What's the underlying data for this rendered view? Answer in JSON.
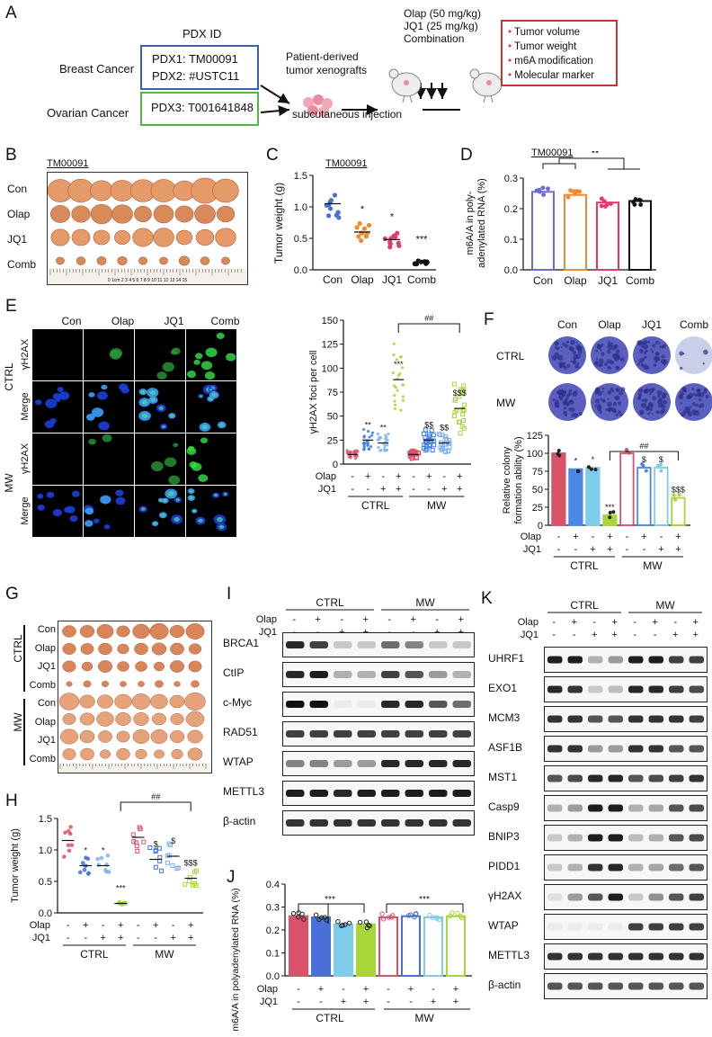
{
  "panelA": {
    "letter": "A",
    "pdx_header": "PDX ID",
    "breast": "Breast Cancer",
    "ovarian": "Ovarian Cancer",
    "pdx1": "PDX1: TM00091",
    "pdx2": "PDX2: #USTC11",
    "pdx3": "PDX3: T001641848",
    "xenograft1": "Patient-derived",
    "xenograft2": "tumor xenografts",
    "injection": "subcutaneous injection",
    "drug1": "Olap (50 mg/kg)",
    "drug2": "JQ1 (25 mg/kg)",
    "drug3": "Combination",
    "readouts": [
      "Tumor volume",
      "Tumor weight",
      "m6A modification",
      "Molecular marker"
    ],
    "colors": {
      "breast_box": "#3a5fb0",
      "ovarian_box": "#55b54a",
      "readout_box": "#c0392b",
      "bullet": "#e03b3b"
    }
  },
  "panelB": {
    "letter": "B",
    "model": "TM00091",
    "rows": [
      "Con",
      "Olap",
      "JQ1",
      "Comb"
    ],
    "ruler": "0  1cm 2  3  4  5  6  7  8  9  10  11  12  13  14  15"
  },
  "panelC": {
    "letter": "C",
    "model": "TM00091",
    "ylabel": "Tumor weight (g)",
    "yticks": [
      "0.0",
      "0.5",
      "1.0",
      "1.5"
    ],
    "xlabels": [
      "Con",
      "Olap",
      "JQ1",
      "Comb"
    ],
    "sig": [
      "",
      "*",
      "*",
      "***"
    ]
  },
  "panelD": {
    "letter": "D",
    "model": "TM00091",
    "ylabel1": "m6A/A in poly-",
    "ylabel2": "adenylated RNA (%)",
    "yticks": [
      "0.0",
      "0.1",
      "0.2",
      "0.3"
    ],
    "xlabels": [
      "Con",
      "Olap",
      "JQ1",
      "Comb"
    ],
    "sig": "**"
  },
  "panelE": {
    "letter": "E",
    "cols": [
      "Con",
      "Olap",
      "JQ1",
      "Comb"
    ],
    "group1": "CTRL",
    "group2": "MW",
    "rowlabels": [
      "γH2AX",
      "Merge",
      "γH2AX",
      "Merge"
    ],
    "ylabel": "γH2AX foci per cell",
    "yticks": [
      "0",
      "25",
      "50",
      "75",
      "100",
      "125",
      "150"
    ],
    "olap": [
      "-",
      "+",
      "-",
      "+",
      "-",
      "+",
      "-",
      "+"
    ],
    "jq1": [
      "-",
      "-",
      "+",
      "+",
      "-",
      "-",
      "+",
      "+"
    ],
    "sig": [
      "",
      "**",
      "**",
      "***",
      "",
      "$$",
      "$$",
      "$$$"
    ],
    "bracket": "##",
    "row_olap": "Olap",
    "row_jq1": "JQ1"
  },
  "panelF": {
    "letter": "F",
    "cols": [
      "Con",
      "Olap",
      "JQ1",
      "Comb"
    ],
    "rows": [
      "CTRL",
      "MW"
    ],
    "ylabel1": "Relative colony",
    "ylabel2": "formation ability (%)",
    "yticks": [
      "0",
      "25",
      "50",
      "75",
      "100",
      "125"
    ],
    "olap": [
      "-",
      "+",
      "-",
      "+",
      "-",
      "+",
      "-",
      "+"
    ],
    "jq1": [
      "-",
      "-",
      "+",
      "+",
      "-",
      "-",
      "+",
      "+"
    ],
    "sig": [
      "",
      "*",
      "*",
      "***",
      "",
      "$",
      "$",
      "$$$"
    ],
    "bracket": "##",
    "group1": "CTRL",
    "group2": "MW",
    "row_olap": "Olap",
    "row_jq1": "JQ1"
  },
  "panelG": {
    "letter": "G",
    "group1": "CTRL",
    "group2": "MW",
    "rows": [
      "Con",
      "Olap",
      "JQ1",
      "Comb",
      "Con",
      "Olap",
      "JQ1",
      "Comb"
    ]
  },
  "panelH": {
    "letter": "H",
    "ylabel": "Tumor weight (g)",
    "yticks": [
      "0.0",
      "0.5",
      "1.0",
      "1.5"
    ],
    "olap": [
      "-",
      "+",
      "-",
      "+",
      "-",
      "+",
      "-",
      "+"
    ],
    "jq1": [
      "-",
      "-",
      "+",
      "+",
      "-",
      "-",
      "+",
      "+"
    ],
    "sig": [
      "",
      "*",
      "*",
      "***",
      "",
      "$",
      "$",
      "$$$"
    ],
    "bracket": "##",
    "group1": "CTRL",
    "group2": "MW",
    "row_olap": "Olap",
    "row_jq1": "JQ1"
  },
  "panelI": {
    "letter": "I",
    "group1": "CTRL",
    "group2": "MW",
    "row_olap": "Olap",
    "row_jq1": "JQ1",
    "olap": [
      "-",
      "+",
      "-",
      "+",
      "-",
      "+",
      "-",
      "+"
    ],
    "jq1": [
      "-",
      "-",
      "+",
      "+",
      "-",
      "-",
      "+",
      "+"
    ],
    "bands": [
      "BRCA1",
      "CtIP",
      "c-Myc",
      "RAD51",
      "WTAP",
      "METTL3",
      "β-actin"
    ]
  },
  "panelJ": {
    "letter": "J",
    "ylabel": "m6A/A in polyadenylated RNA (%)",
    "yticks": [
      "0.0",
      "0.1",
      "0.2",
      "0.3",
      "0.4"
    ],
    "sig1": "***",
    "sig2": "***",
    "olap": [
      "-",
      "+",
      "-",
      "+",
      "-",
      "+",
      "-",
      "+"
    ],
    "jq1": [
      "-",
      "-",
      "+",
      "+",
      "-",
      "-",
      "+",
      "+"
    ],
    "group1": "CTRL",
    "group2": "MW",
    "row_olap": "Olap",
    "row_jq1": "JQ1"
  },
  "panelK": {
    "letter": "K",
    "group1": "CTRL",
    "group2": "MW",
    "row_olap": "Olap",
    "row_jq1": "JQ1",
    "olap": [
      "-",
      "+",
      "-",
      "+",
      "-",
      "+",
      "-",
      "+"
    ],
    "jq1": [
      "-",
      "-",
      "+",
      "+",
      "-",
      "-",
      "+",
      "+"
    ],
    "bands": [
      "UHRF1",
      "EXO1",
      "MCM3",
      "ASF1B",
      "MST1",
      "Casp9",
      "BNIP3",
      "PIDD1",
      "γH2AX",
      "WTAP",
      "METTL3",
      "β-actin"
    ]
  },
  "chart_data": [
    {
      "type": "scatter",
      "panel": "C",
      "title": "TM00091",
      "ylabel": "Tumor weight (g)",
      "ylim": [
        0,
        1.5
      ],
      "categories": [
        "Con",
        "Olap",
        "JQ1",
        "Comb"
      ],
      "means": [
        1.05,
        0.6,
        0.48,
        0.12
      ],
      "colors": [
        "#4a6fd8",
        "#f08a2a",
        "#e8386a",
        "#111111"
      ]
    },
    {
      "type": "bar",
      "panel": "D",
      "title": "TM00091",
      "ylabel": "m6A/A in poly-adenylated RNA (%)",
      "ylim": [
        0,
        0.3
      ],
      "categories": [
        "Con",
        "Olap",
        "JQ1",
        "Comb"
      ],
      "values": [
        0.255,
        0.245,
        0.22,
        0.225
      ],
      "colors": [
        "#6a6ad8",
        "#f08a2a",
        "#e8386a",
        "#111111"
      ]
    },
    {
      "type": "scatter",
      "panel": "E",
      "ylabel": "γH2AX foci per cell",
      "ylim": [
        0,
        150
      ],
      "categories": [
        "1",
        "2",
        "3",
        "4",
        "5",
        "6",
        "7",
        "8"
      ],
      "means": [
        10,
        25,
        22,
        88,
        10,
        25,
        22,
        58
      ],
      "colors": [
        "#d8536a",
        "#3f7fe0",
        "#7fb3f0",
        "#a8d63a",
        "#d8536a",
        "#3f7fe0",
        "#7fb3f0",
        "#a8d63a"
      ]
    },
    {
      "type": "bar",
      "panel": "F",
      "ylabel": "Relative colony formation ability (%)",
      "ylim": [
        0,
        125
      ],
      "categories": [
        "1",
        "2",
        "3",
        "4",
        "5",
        "6",
        "7",
        "8"
      ],
      "values": [
        100,
        78,
        80,
        14,
        100,
        80,
        80,
        38
      ],
      "colors": [
        "#d8536a",
        "#4a88e8",
        "#7ecbea",
        "#a8d63a",
        "#d8536a",
        "#4a88e8",
        "#7ecbea",
        "#a8d63a"
      ]
    },
    {
      "type": "scatter",
      "panel": "H",
      "ylabel": "Tumor weight (g)",
      "ylim": [
        0,
        1.5
      ],
      "categories": [
        "1",
        "2",
        "3",
        "4",
        "5",
        "6",
        "7",
        "8"
      ],
      "means": [
        1.15,
        0.75,
        0.75,
        0.15,
        1.2,
        0.85,
        0.9,
        0.55
      ],
      "colors": [
        "#d8536a",
        "#3f6fd8",
        "#7fb3f0",
        "#a8d63a",
        "#d8536a",
        "#3f6fd8",
        "#7fb3f0",
        "#a8d63a"
      ]
    },
    {
      "type": "bar",
      "panel": "J",
      "ylabel": "m6A/A in polyadenylated RNA (%)",
      "ylim": [
        0,
        0.4
      ],
      "categories": [
        "1",
        "2",
        "3",
        "4",
        "5",
        "6",
        "7",
        "8"
      ],
      "values": [
        0.26,
        0.255,
        0.225,
        0.225,
        0.255,
        0.26,
        0.255,
        0.26
      ],
      "colors": [
        "#d8536a",
        "#4a6fd8",
        "#7ecbea",
        "#a8d63a",
        "#d8536a",
        "#4a6fd8",
        "#7ecbea",
        "#a8d63a"
      ]
    }
  ]
}
